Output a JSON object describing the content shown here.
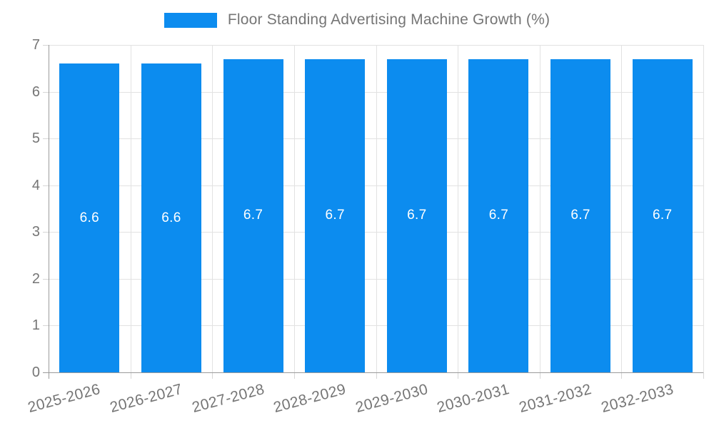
{
  "legend": {
    "label": "Floor Standing Advertising Machine Growth (%)"
  },
  "colors": {
    "bar": "#0c8cef",
    "bar_label": "#ffffff",
    "axis": "#9a9a9a",
    "grid": "#e2e2e2",
    "tick": "#d6d6d6",
    "text": "#757575"
  },
  "chart_data": {
    "type": "bar",
    "title": "Floor Standing Advertising Machine Growth (%)",
    "categories": [
      "2025-2026",
      "2026-2027",
      "2027-2028",
      "2028-2029",
      "2029-2030",
      "2030-2031",
      "2031-2032",
      "2032-2033"
    ],
    "values": [
      6.6,
      6.6,
      6.7,
      6.7,
      6.7,
      6.7,
      6.7,
      6.7
    ],
    "bar_labels": [
      "6.6",
      "6.6",
      "6.7",
      "6.7",
      "6.7",
      "6.7",
      "6.7",
      "6.7"
    ],
    "xlabel": "",
    "ylabel": "",
    "ylim": [
      0,
      7
    ],
    "yticks": [
      0,
      1,
      2,
      3,
      4,
      5,
      6,
      7
    ],
    "grid": true,
    "legend_position": "top"
  }
}
